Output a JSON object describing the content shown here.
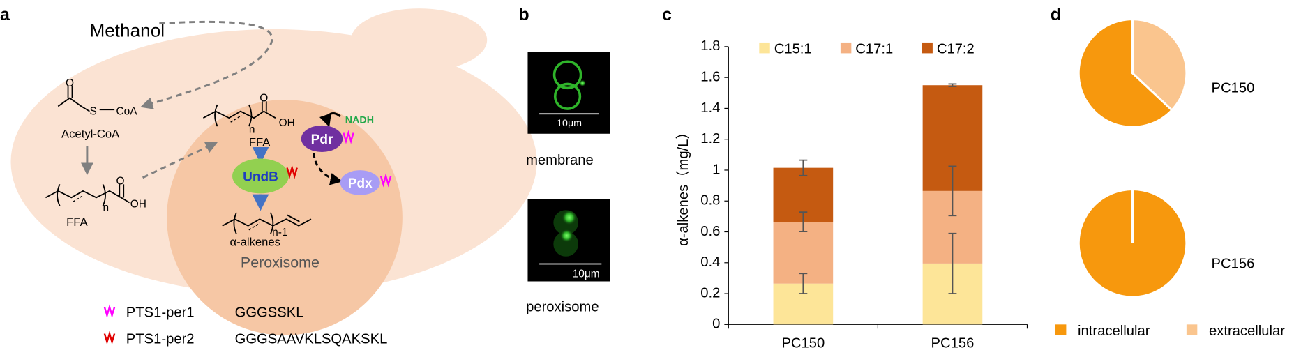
{
  "panel_labels": [
    "a",
    "b",
    "c",
    "d"
  ],
  "diagram": {
    "methanol": "Methanol",
    "acetyl_coa": {
      "o": "O",
      "s": "S",
      "coa": "CoA",
      "label": "Acetyl-CoA"
    },
    "ffa_cytosol": {
      "o": "O",
      "oh": "OH",
      "n": "n",
      "label": "FFA"
    },
    "ffa_peroxisome": {
      "o": "O",
      "oh": "OH",
      "n": "n",
      "label": "FFA"
    },
    "alkene": {
      "n": "n-1",
      "label": "α-alkenes"
    },
    "enzymes": {
      "pdr": "Pdr",
      "undb": "UndB",
      "pdx": "Pdx",
      "nadh": "NADH"
    },
    "peroxisome": "Peroxisome",
    "tags": [
      {
        "name": "PTS1-per1",
        "sequence": "GGGSSKL"
      },
      {
        "name": "PTS1-per2",
        "sequence": "GGGSAAVKLSQAKSKL"
      }
    ]
  },
  "microscopy": [
    {
      "scale": "10μm",
      "caption": "membrane"
    },
    {
      "scale": "10μm",
      "caption": "peroxisome"
    }
  ],
  "chart_data": [
    {
      "type": "bar",
      "stacked": true,
      "ylabel": "α-alkenes（mg/L）",
      "categories": [
        "PC150",
        "PC156"
      ],
      "series": [
        {
          "name": "C15:1",
          "color": "#fde598",
          "values": [
            0.265,
            0.395
          ],
          "errors": [
            0.065,
            0.195
          ]
        },
        {
          "name": "C17:1",
          "color": "#f4b183",
          "values": [
            0.4,
            0.47
          ],
          "errors": [
            0.063,
            0.16
          ]
        },
        {
          "name": "C17:2",
          "color": "#c55a11",
          "values": [
            0.35,
            0.685
          ],
          "errors": [
            0.05,
            0.008
          ]
        }
      ],
      "ylim": [
        0,
        1.8
      ],
      "yticks": [
        0,
        0.2,
        0.4,
        0.6,
        0.8,
        1,
        1.2,
        1.4,
        1.6,
        1.8
      ],
      "legend": "top"
    },
    {
      "type": "pie",
      "categories": [
        "intracellular",
        "extracellular"
      ],
      "colors": [
        "#f7980d",
        "#fac58e"
      ],
      "pies": [
        {
          "name": "PC150",
          "values": [
            63,
            37
          ]
        },
        {
          "name": "PC156",
          "values": [
            100,
            0
          ]
        }
      ],
      "legend": "bottom"
    }
  ]
}
